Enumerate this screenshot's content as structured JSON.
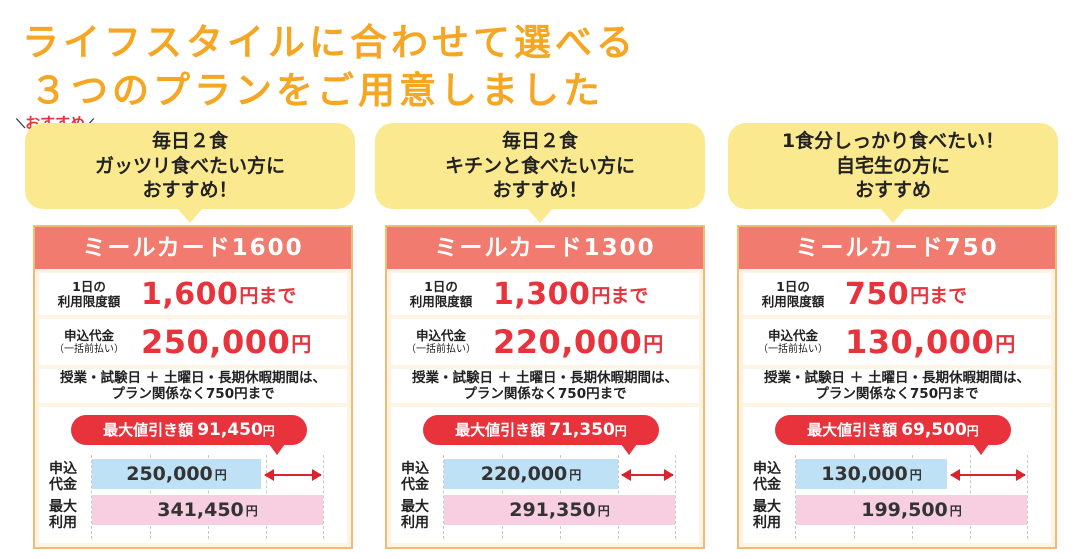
{
  "headline": {
    "line1": "ライフスタイルに合わせて選べる",
    "line2": "３つのプランをご用意しました"
  },
  "recommend_tag": "おすすめ",
  "labels": {
    "limit_line1": "1日の",
    "limit_line2": "利用限度額",
    "fee_line1": "申込代金",
    "fee_line2": "（一括前払い）",
    "note_line1": "授業・試験日 ＋ 土曜日・長期休暇期間は、",
    "note_line2": "プラン関係なく750円まで",
    "discount_label": "最大値引き額",
    "bar1_line1": "申込",
    "bar1_line2": "代金",
    "bar2_line1": "最大",
    "bar2_line2": "利用",
    "limit_unit": "円まで",
    "yen": "円"
  },
  "plans": [
    {
      "bubble_line1": "毎日２食",
      "bubble_line2": "ガッツリ食べたい方に",
      "bubble_line3": "おすすめ！",
      "title": "ミールカード1600",
      "daily_limit": "1,600",
      "fee": "250,000",
      "discount": "91,450",
      "fee_bar": "250,000",
      "max_usage": "341,450",
      "fee_ratio": 0.7322
    },
    {
      "bubble_line1": "毎日２食",
      "bubble_line2": "キチンと食べたい方に",
      "bubble_line3": "おすすめ！",
      "title": "ミールカード1300",
      "daily_limit": "1,300",
      "fee": "220,000",
      "discount": "71,350",
      "fee_bar": "220,000",
      "max_usage": "291,350",
      "fee_ratio": 0.7551
    },
    {
      "bubble_line1": "1食分しっかり食べたい！",
      "bubble_line2": "自宅生の方に",
      "bubble_line3": "おすすめ",
      "title": "ミールカード750",
      "daily_limit": "750",
      "fee": "130,000",
      "discount": "69,500",
      "fee_bar": "130,000",
      "max_usage": "199,500",
      "fee_ratio": 0.6516
    }
  ]
}
